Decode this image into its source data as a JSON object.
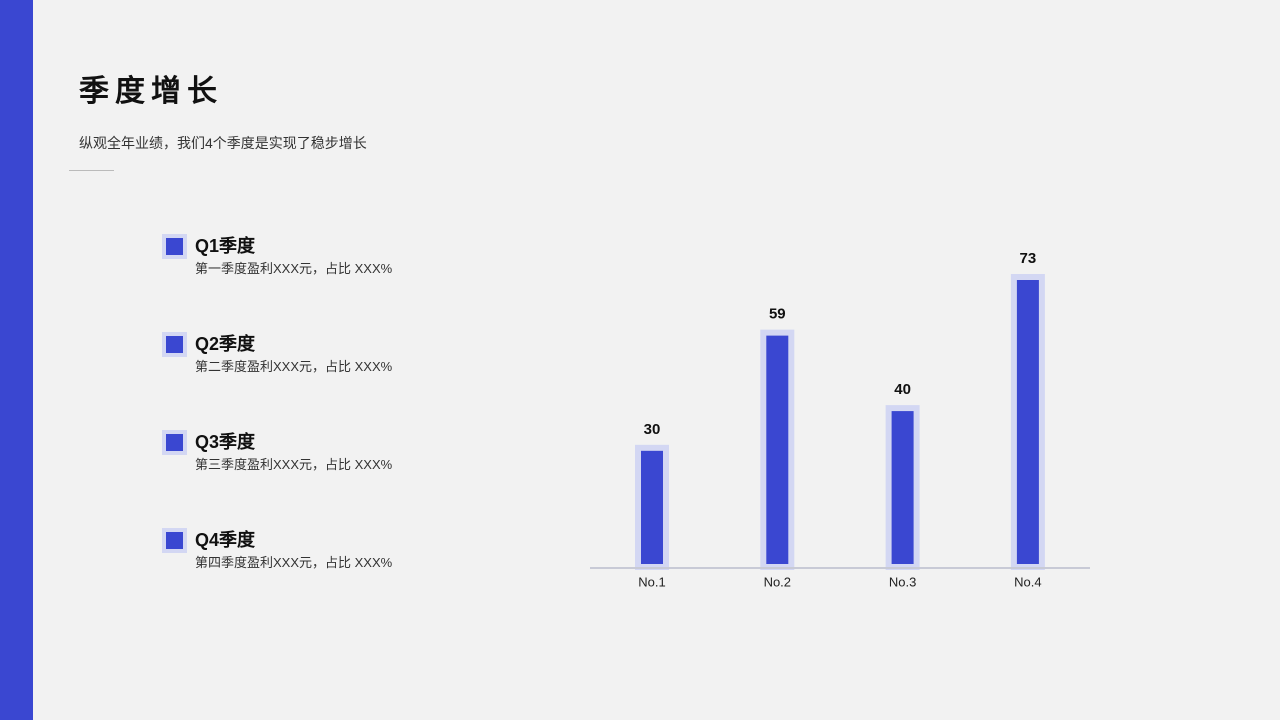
{
  "header": {
    "title": "季度增长",
    "subtitle": "纵观全年业绩，我们4个季度是实现了稳步增长"
  },
  "items": [
    {
      "label": "Q1季度",
      "desc": "第一季度盈利XXX元，占比 XXX%"
    },
    {
      "label": "Q2季度",
      "desc": "第二季度盈利XXX元，占比 XXX%"
    },
    {
      "label": "Q3季度",
      "desc": "第三季度盈利XXX元，占比 XXX%"
    },
    {
      "label": "Q4季度",
      "desc": "第四季度盈利XXX元，占比 XXX%"
    }
  ],
  "chart_data": {
    "type": "bar",
    "categories": [
      "No.1",
      "No.2",
      "No.3",
      "No.4"
    ],
    "values": [
      30,
      59,
      40,
      73
    ],
    "color": "#3a47d1"
  }
}
